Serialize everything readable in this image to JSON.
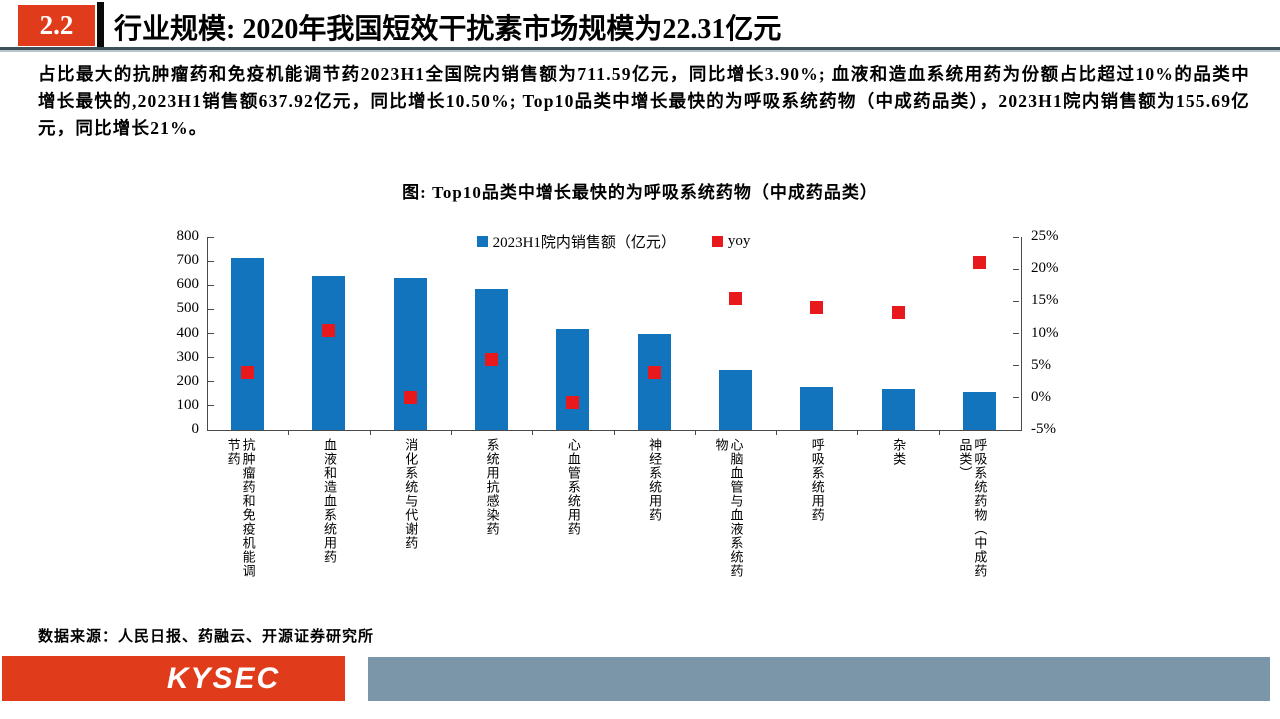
{
  "header": {
    "section_number": "2.2",
    "title": "行业规模: 2020年我国短效干扰素市场规模为22.31亿元"
  },
  "body": {
    "paragraph": "占比最大的抗肿瘤药和免疫机能调节药2023H1全国院内销售额为711.59亿元，同比增长3.90%; 血液和造血系统用药为份额占比超过10%的品类中增长最快的,2023H1销售额637.92亿元，同比增长10.50%; Top10品类中增长最快的为呼吸系统药物（中成药品类），2023H1院内销售额为155.69亿元，同比增长21%。"
  },
  "chart": {
    "title": "图: Top10品类中增长最快的为呼吸系统药物（中成药品类）"
  },
  "chart_data": {
    "type": "bar",
    "title": "图: Top10品类中增长最快的为呼吸系统药物（中成药品类）",
    "categories": [
      "抗肿瘤药和免疫机能调节药",
      "血液和造血系统用药",
      "消化系统与代谢药",
      "系统用抗感染药",
      "心血管系统用药",
      "神经系统用药",
      "心脑血管与血液系统药物",
      "呼吸系统用药",
      "杂类",
      "呼吸系统药物（中成药品类）"
    ],
    "series": [
      {
        "name": "2023H1院内销售额（亿元）",
        "type": "bar",
        "axis": "left",
        "color": "#1274BC",
        "values": [
          711.59,
          637.92,
          628,
          585,
          418,
          400,
          248,
          177,
          168,
          155.69
        ]
      },
      {
        "name": "yoy",
        "type": "scatter",
        "axis": "right",
        "color": "#E8191D",
        "values": [
          3.9,
          10.5,
          0.1,
          5.9,
          -0.7,
          3.9,
          15.4,
          14.1,
          13.2,
          21.0
        ]
      }
    ],
    "left_axis": {
      "min": 0,
      "max": 800,
      "step": 100
    },
    "right_axis": {
      "min": -5,
      "max": 25,
      "step": 5,
      "suffix": "%"
    },
    "legend_position": "top-center",
    "grid": false
  },
  "footer": {
    "source": "数据来源：人民日报、药融云、开源证券研究所"
  },
  "brand": {
    "logo_text": "KYSEC"
  },
  "colors": {
    "accent_red": "#E03C1C",
    "bar_blue": "#1274BC",
    "marker_red": "#E8191D",
    "bottom_bar": "#7A96A8"
  }
}
